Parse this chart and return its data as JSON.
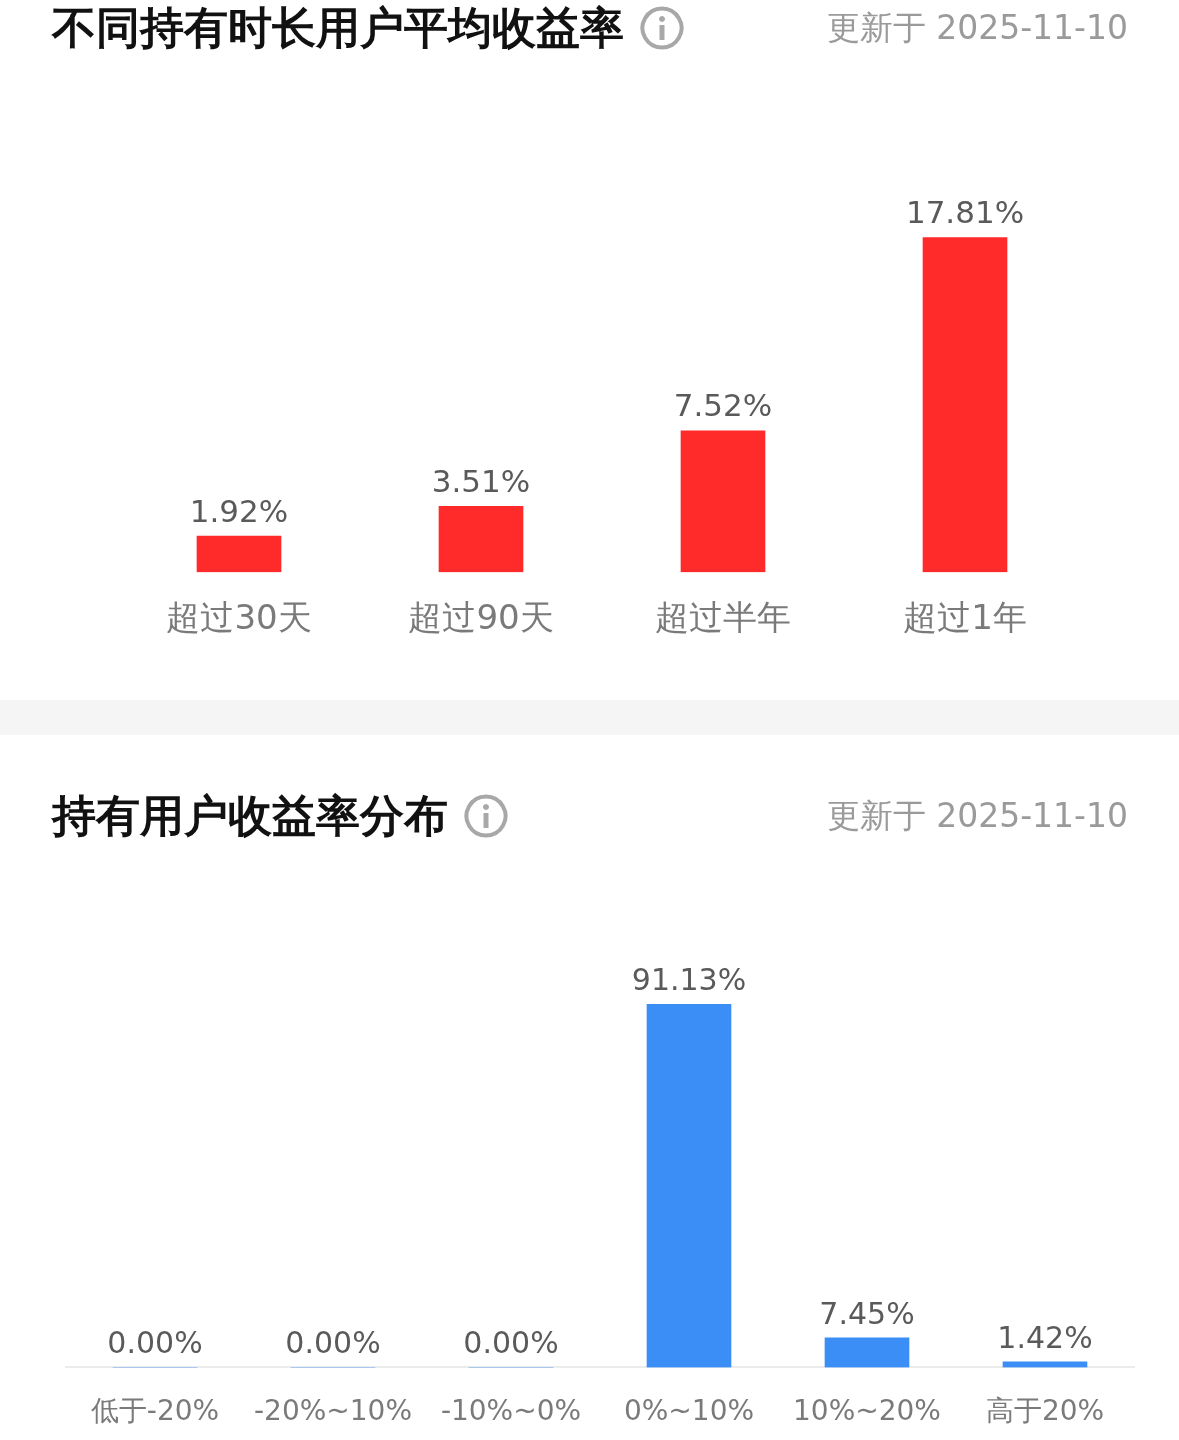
{
  "chart_data": [
    {
      "type": "bar",
      "title": "不同持有时长用户平均收益率",
      "subtitle": "更新于 2025-11-10",
      "categories": [
        "超过30天",
        "超过90天",
        "超过半年",
        "超过1年"
      ],
      "values": [
        1.92,
        3.51,
        7.52,
        17.81
      ],
      "color": "#ff2a2a",
      "value_labels": [
        "1.92%",
        "3.51%",
        "7.52%",
        "17.81%"
      ],
      "tick_labels": "x"
    },
    {
      "type": "bar",
      "title": "持有用户收益率分布",
      "subtitle": "更新于 2025-11-10",
      "categories": [
        "低于-20%",
        "-20%~10%",
        "-10%~0%",
        "0%~10%",
        "10%~20%",
        "高于20%"
      ],
      "values": [
        0,
        0,
        0,
        91.13,
        7.45,
        1.42
      ],
      "color": "#3a8ef6",
      "value_labels": [
        "0.00%",
        "0.00%",
        "0.00%",
        "91.13%",
        "7.45%",
        "1.42%"
      ],
      "tick_labels": "x"
    }
  ]
}
